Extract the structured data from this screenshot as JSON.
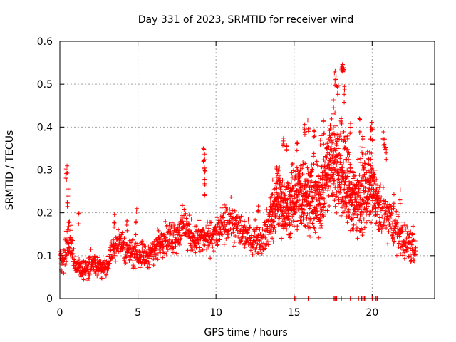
{
  "chart_data": {
    "type": "scatter",
    "title": "Day 331 of 2023, SRMTID for receiver wind",
    "xlabel": "GPS time / hours",
    "ylabel": "SRMTID / TECUs",
    "xlim": [
      0,
      24
    ],
    "ylim": [
      0,
      0.6
    ],
    "xticks": [
      "0",
      "5",
      "10",
      "15",
      "20"
    ],
    "yticks": [
      "0",
      "0.1",
      "0.2",
      "0.3",
      "0.4",
      "0.5",
      "0.6"
    ],
    "grid": true,
    "marker": "+",
    "color": "#ff0000",
    "profile": [
      [
        0.0,
        0.09,
        0.025
      ],
      [
        0.2,
        0.08,
        0.02
      ],
      [
        0.5,
        0.14,
        0.03
      ],
      [
        0.7,
        0.13,
        0.03
      ],
      [
        1.0,
        0.08,
        0.02
      ],
      [
        1.5,
        0.07,
        0.015
      ],
      [
        2.0,
        0.075,
        0.02
      ],
      [
        2.5,
        0.075,
        0.015
      ],
      [
        3.0,
        0.07,
        0.015
      ],
      [
        3.4,
        0.12,
        0.025
      ],
      [
        3.8,
        0.14,
        0.025
      ],
      [
        4.2,
        0.11,
        0.02
      ],
      [
        4.8,
        0.11,
        0.025
      ],
      [
        5.5,
        0.1,
        0.02
      ],
      [
        6.0,
        0.11,
        0.02
      ],
      [
        6.5,
        0.14,
        0.025
      ],
      [
        7.0,
        0.14,
        0.025
      ],
      [
        7.5,
        0.15,
        0.03
      ],
      [
        8.0,
        0.17,
        0.03
      ],
      [
        8.5,
        0.14,
        0.025
      ],
      [
        9.0,
        0.14,
        0.025
      ],
      [
        9.5,
        0.14,
        0.025
      ],
      [
        10.0,
        0.15,
        0.025
      ],
      [
        10.5,
        0.17,
        0.03
      ],
      [
        11.0,
        0.18,
        0.03
      ],
      [
        11.5,
        0.16,
        0.03
      ],
      [
        12.0,
        0.15,
        0.025
      ],
      [
        12.5,
        0.14,
        0.025
      ],
      [
        13.0,
        0.14,
        0.025
      ],
      [
        13.5,
        0.18,
        0.04
      ],
      [
        14.0,
        0.24,
        0.05
      ],
      [
        14.5,
        0.2,
        0.05
      ],
      [
        15.0,
        0.24,
        0.05
      ],
      [
        15.5,
        0.25,
        0.06
      ],
      [
        16.0,
        0.24,
        0.06
      ],
      [
        16.5,
        0.23,
        0.06
      ],
      [
        17.0,
        0.27,
        0.06
      ],
      [
        17.5,
        0.33,
        0.07
      ],
      [
        18.0,
        0.3,
        0.08
      ],
      [
        18.5,
        0.25,
        0.07
      ],
      [
        19.0,
        0.23,
        0.06
      ],
      [
        19.5,
        0.25,
        0.06
      ],
      [
        20.0,
        0.26,
        0.05
      ],
      [
        20.5,
        0.2,
        0.04
      ],
      [
        21.0,
        0.19,
        0.04
      ],
      [
        21.5,
        0.16,
        0.03
      ],
      [
        22.0,
        0.14,
        0.03
      ],
      [
        22.5,
        0.12,
        0.03
      ],
      [
        22.8,
        0.11,
        0.03
      ]
    ],
    "spikes": [
      [
        0.4,
        0.32
      ],
      [
        0.45,
        0.31
      ],
      [
        0.5,
        0.26
      ],
      [
        0.5,
        0.24
      ],
      [
        0.6,
        0.2
      ],
      [
        1.2,
        0.205
      ],
      [
        3.5,
        0.2
      ],
      [
        4.3,
        0.19
      ],
      [
        4.9,
        0.215
      ],
      [
        9.2,
        0.355
      ],
      [
        9.25,
        0.34
      ],
      [
        9.3,
        0.3
      ],
      [
        9.3,
        0.28
      ],
      [
        12.7,
        0.22
      ],
      [
        13.5,
        0.24
      ],
      [
        13.9,
        0.32
      ],
      [
        14.3,
        0.39
      ],
      [
        14.5,
        0.38
      ],
      [
        15.2,
        0.37
      ],
      [
        15.7,
        0.41
      ],
      [
        15.9,
        0.43
      ],
      [
        16.3,
        0.4
      ],
      [
        16.7,
        0.39
      ],
      [
        16.9,
        0.42
      ],
      [
        17.1,
        0.365
      ],
      [
        17.3,
        0.41
      ],
      [
        17.5,
        0.465
      ],
      [
        17.6,
        0.535
      ],
      [
        17.7,
        0.525
      ],
      [
        17.8,
        0.5
      ],
      [
        18.0,
        0.45
      ],
      [
        18.05,
        0.57
      ],
      [
        18.1,
        0.56
      ],
      [
        18.15,
        0.545
      ],
      [
        18.2,
        0.495
      ],
      [
        18.3,
        0.39
      ],
      [
        18.4,
        0.38
      ],
      [
        18.6,
        0.42
      ],
      [
        19.2,
        0.42
      ],
      [
        19.4,
        0.38
      ],
      [
        19.9,
        0.41
      ],
      [
        19.95,
        0.415
      ],
      [
        20.0,
        0.4
      ],
      [
        20.7,
        0.39
      ],
      [
        20.8,
        0.38
      ],
      [
        20.9,
        0.36
      ],
      [
        21.4,
        0.25
      ],
      [
        21.8,
        0.26
      ],
      [
        22.6,
        0.17
      ]
    ],
    "zero_x": [
      15.0,
      15.1,
      15.9,
      17.5,
      17.6,
      17.7,
      18.0,
      18.6,
      19.1,
      19.3,
      19.4,
      19.5,
      20.0,
      20.2,
      20.3
    ]
  }
}
